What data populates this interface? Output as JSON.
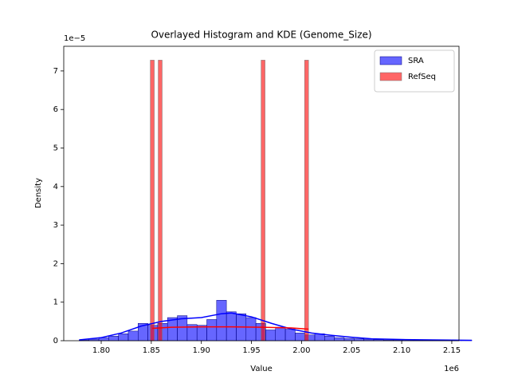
{
  "chart_data": {
    "type": "histogram",
    "title": "Overlayed Histogram and KDE (Genome_Size)",
    "xlabel": "Value",
    "ylabel": "Density",
    "x_offset": "1e6",
    "y_offset": "1e−5",
    "xlim": [
      1.7626,
      2.1572
    ],
    "ylim": [
      0,
      7.64
    ],
    "xticks": [
      {
        "value": 1.8,
        "label": "1.80"
      },
      1.85,
      {
        "value": 1.9,
        "label": "1.90"
      },
      1.95,
      {
        "value": 2.0,
        "label": "2.00"
      },
      2.05,
      {
        "value": 2.1,
        "label": "2.10"
      },
      2.15
    ],
    "yticks": [
      0,
      1,
      2,
      3,
      4,
      5,
      6,
      7
    ],
    "legend": "upper right",
    "series": [
      {
        "name": "SRA",
        "color": "blue",
        "bins": [
          1.778,
          1.7878,
          1.7976,
          1.8074,
          1.8172,
          1.827,
          1.8368,
          1.8466,
          1.8564,
          1.8662,
          1.876,
          1.8858,
          1.8956,
          1.9054,
          1.9152,
          1.925,
          1.9348,
          1.9446,
          1.9544,
          1.9642,
          1.974,
          1.9838,
          1.9936,
          2.0034,
          2.0132,
          2.023,
          2.0328,
          2.0426,
          2.0524,
          2.0622,
          2.072,
          2.0818,
          2.0916,
          2.1014,
          2.1112,
          2.121,
          2.1308,
          2.1406,
          2.1504,
          2.1602,
          2.17
        ],
        "values": [
          0.02,
          0.04,
          0.08,
          0.12,
          0.18,
          0.25,
          0.45,
          0.4,
          0.45,
          0.6,
          0.65,
          0.42,
          0.4,
          0.55,
          1.05,
          0.75,
          0.7,
          0.6,
          0.45,
          0.28,
          0.35,
          0.3,
          0.2,
          0.15,
          0.18,
          0.12,
          0.08,
          0.06,
          0.05,
          0.04,
          0.03,
          0.02,
          0.02,
          0.01,
          0.01,
          0.01,
          0.01,
          0.01,
          0.01,
          0.01
        ],
        "kde": {
          "x": [
            1.778,
            1.8,
            1.82,
            1.84,
            1.86,
            1.88,
            1.9,
            1.92,
            1.93,
            1.95,
            1.97,
            1.99,
            2.01,
            2.03,
            2.05,
            2.07,
            2.1,
            2.13,
            2.17
          ],
          "y": [
            0.02,
            0.08,
            0.2,
            0.38,
            0.5,
            0.57,
            0.6,
            0.7,
            0.72,
            0.62,
            0.45,
            0.3,
            0.2,
            0.14,
            0.09,
            0.05,
            0.03,
            0.02,
            0.01
          ]
        }
      },
      {
        "name": "RefSeq",
        "color": "red",
        "bins": [
          1.849,
          1.85295,
          1.8569,
          1.86085,
          1.8648,
          1.86875,
          1.8727,
          1.87665,
          1.8806,
          1.88455,
          1.8885,
          1.89245,
          1.8964,
          1.90035,
          1.9043,
          1.90825,
          1.9122,
          1.91615,
          1.9201,
          1.92405,
          1.928,
          1.93195,
          1.9359,
          1.93985,
          1.9438,
          1.94775,
          1.9517,
          1.95565,
          1.9596,
          1.96355,
          1.9675,
          1.97145,
          1.9754,
          1.97935,
          1.9833,
          1.98725,
          1.9912,
          1.99515,
          1.9991,
          2.00305,
          2.007
        ],
        "values": [
          7.28,
          0,
          7.28,
          0,
          0,
          0,
          0,
          0,
          0,
          0,
          0,
          0,
          0,
          0,
          0,
          0,
          0,
          0,
          0,
          0,
          0,
          0,
          0,
          0,
          0,
          0,
          0,
          0,
          7.28,
          0,
          0,
          0,
          0,
          0,
          0,
          0,
          0,
          0,
          0,
          7.28
        ],
        "kde": {
          "x": [
            1.851,
            1.87,
            1.9,
            1.93,
            1.96,
            1.99,
            2.007
          ],
          "y": [
            0.32,
            0.35,
            0.36,
            0.36,
            0.35,
            0.33,
            0.3
          ]
        }
      }
    ]
  }
}
